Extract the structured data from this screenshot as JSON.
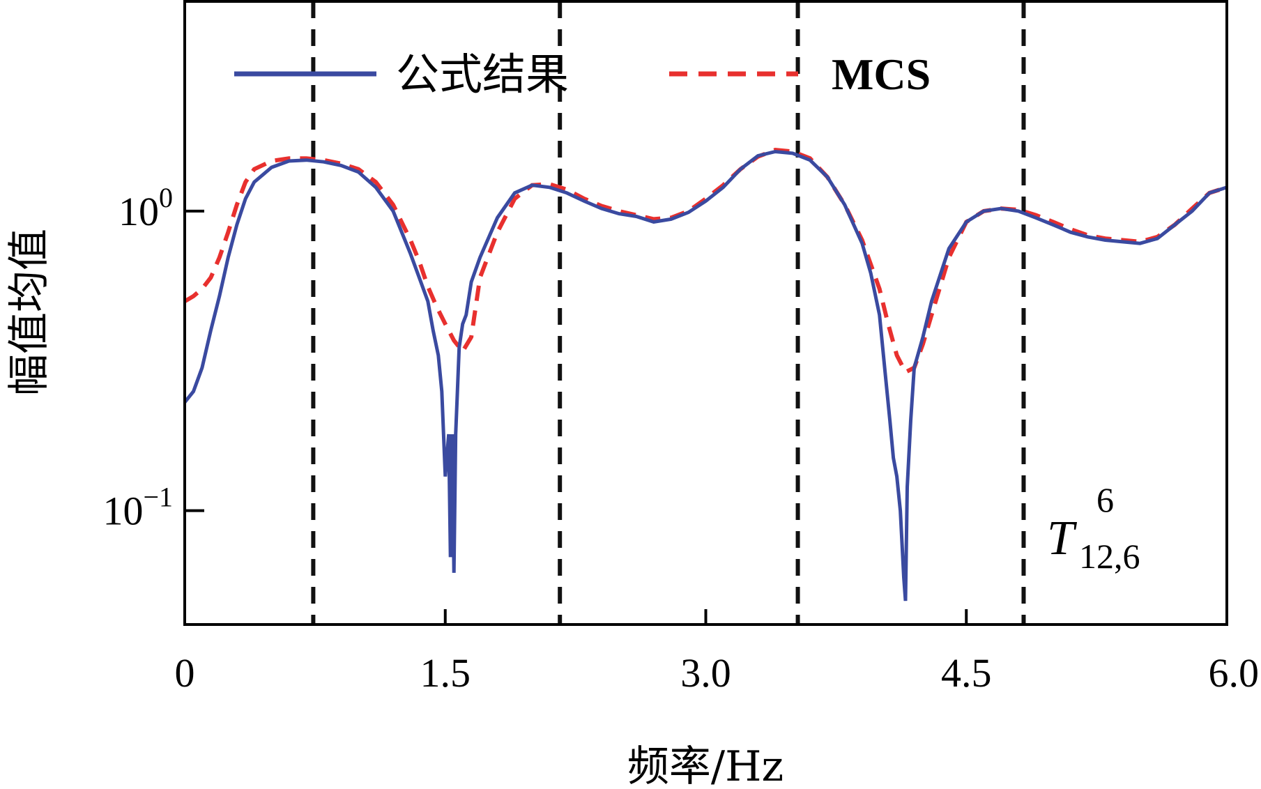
{
  "chart_data": {
    "type": "line",
    "xlabel": "频率/Hz",
    "ylabel": "幅值均值",
    "xlim": [
      0,
      6.0
    ],
    "ylim_log10": [
      -1.38,
      0.7
    ],
    "y_scale": "log",
    "x_ticks": [
      "0",
      "1.5",
      "3.0",
      "4.5",
      "6.0"
    ],
    "x_tick_values": [
      0,
      1.5,
      3.0,
      4.5,
      6.0
    ],
    "y_ticks": [
      {
        "value": 1,
        "base": "10",
        "exp": "0"
      },
      {
        "value": 0.1,
        "base": "10",
        "exp": "−1"
      }
    ],
    "legend_position": "top",
    "annotation": {
      "main": "T",
      "sup": "6",
      "sub": "12,6"
    },
    "vlines_x": [
      0.74,
      2.16,
      3.53,
      4.83
    ],
    "colors": {
      "formula": "#3a4aa0",
      "mcs": "#e8302e",
      "vline": "#111111"
    },
    "series": [
      {
        "name": "公式结果",
        "style": "solid",
        "x": [
          0,
          0.05,
          0.1,
          0.15,
          0.2,
          0.25,
          0.3,
          0.35,
          0.4,
          0.5,
          0.6,
          0.7,
          0.8,
          0.9,
          1.0,
          1.1,
          1.2,
          1.3,
          1.35,
          1.4,
          1.43,
          1.46,
          1.48,
          1.5,
          1.52,
          1.53,
          1.54,
          1.55,
          1.56,
          1.57,
          1.58,
          1.6,
          1.62,
          1.65,
          1.7,
          1.8,
          1.9,
          2.0,
          2.1,
          2.2,
          2.3,
          2.4,
          2.5,
          2.6,
          2.7,
          2.8,
          2.9,
          3.0,
          3.1,
          3.2,
          3.3,
          3.4,
          3.5,
          3.6,
          3.7,
          3.8,
          3.9,
          3.95,
          4.0,
          4.03,
          4.06,
          4.08,
          4.1,
          4.12,
          4.14,
          4.15,
          4.16,
          4.18,
          4.2,
          4.25,
          4.3,
          4.4,
          4.5,
          4.6,
          4.7,
          4.8,
          4.9,
          5.0,
          5.1,
          5.2,
          5.3,
          5.4,
          5.5,
          5.6,
          5.7,
          5.8,
          5.9,
          6.0
        ],
        "values": [
          0.23,
          0.25,
          0.3,
          0.4,
          0.52,
          0.7,
          0.9,
          1.1,
          1.25,
          1.4,
          1.47,
          1.48,
          1.46,
          1.42,
          1.35,
          1.2,
          1.0,
          0.72,
          0.6,
          0.5,
          0.4,
          0.33,
          0.25,
          0.13,
          0.18,
          0.07,
          0.18,
          0.062,
          0.18,
          0.25,
          0.35,
          0.42,
          0.45,
          0.58,
          0.7,
          0.95,
          1.15,
          1.22,
          1.2,
          1.15,
          1.08,
          1.02,
          0.98,
          0.96,
          0.92,
          0.94,
          0.99,
          1.08,
          1.2,
          1.38,
          1.53,
          1.58,
          1.56,
          1.48,
          1.3,
          1.05,
          0.78,
          0.62,
          0.45,
          0.3,
          0.2,
          0.15,
          0.13,
          0.1,
          0.06,
          0.05,
          0.12,
          0.2,
          0.3,
          0.38,
          0.5,
          0.75,
          0.92,
          1.0,
          1.02,
          1.0,
          0.95,
          0.9,
          0.85,
          0.82,
          0.8,
          0.79,
          0.78,
          0.81,
          0.9,
          1.0,
          1.15,
          1.2
        ]
      },
      {
        "name": "MCS",
        "style": "dashed",
        "x": [
          0,
          0.05,
          0.1,
          0.15,
          0.2,
          0.25,
          0.3,
          0.35,
          0.4,
          0.5,
          0.6,
          0.7,
          0.8,
          0.9,
          1.0,
          1.1,
          1.2,
          1.3,
          1.35,
          1.4,
          1.45,
          1.5,
          1.55,
          1.6,
          1.65,
          1.7,
          1.8,
          1.9,
          2.0,
          2.1,
          2.2,
          2.3,
          2.4,
          2.5,
          2.6,
          2.7,
          2.8,
          2.9,
          3.0,
          3.1,
          3.2,
          3.3,
          3.4,
          3.5,
          3.6,
          3.7,
          3.8,
          3.9,
          4.0,
          4.05,
          4.1,
          4.15,
          4.2,
          4.25,
          4.3,
          4.4,
          4.5,
          4.6,
          4.7,
          4.8,
          4.9,
          5.0,
          5.1,
          5.2,
          5.3,
          5.4,
          5.5,
          5.6,
          5.7,
          5.8,
          5.9,
          6.0
        ],
        "values": [
          0.5,
          0.52,
          0.55,
          0.6,
          0.7,
          0.85,
          1.05,
          1.25,
          1.38,
          1.47,
          1.5,
          1.5,
          1.48,
          1.44,
          1.38,
          1.25,
          1.05,
          0.8,
          0.68,
          0.56,
          0.48,
          0.42,
          0.37,
          0.34,
          0.38,
          0.6,
          0.85,
          1.1,
          1.22,
          1.23,
          1.18,
          1.1,
          1.04,
          1.0,
          0.97,
          0.94,
          0.95,
          1.0,
          1.1,
          1.22,
          1.38,
          1.52,
          1.6,
          1.58,
          1.5,
          1.3,
          1.05,
          0.8,
          0.55,
          0.42,
          0.33,
          0.29,
          0.3,
          0.36,
          0.45,
          0.7,
          0.92,
          1.0,
          1.02,
          1.01,
          0.97,
          0.92,
          0.87,
          0.83,
          0.81,
          0.8,
          0.79,
          0.82,
          0.9,
          1.02,
          1.15,
          1.2
        ]
      }
    ]
  },
  "legend": {
    "formula_label": "公式结果",
    "mcs_label": "MCS"
  }
}
